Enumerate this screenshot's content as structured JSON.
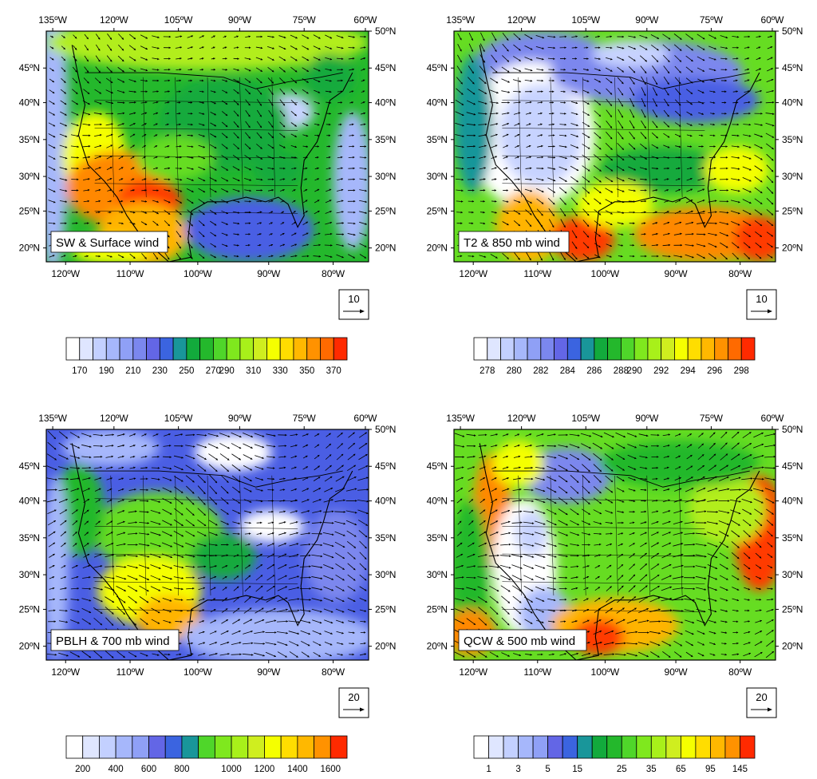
{
  "figure": {
    "panels": [
      {
        "label": "SW & Surface wind",
        "top_lon_labels": [
          "135ºW",
          "120ºW",
          "105ºW",
          "90ºW",
          "75ºW",
          "60ºW"
        ],
        "bottom_lon_labels": [
          "120ºW",
          "110ºW",
          "100ºW",
          "90ºW",
          "80ºW"
        ],
        "lat_labels": [
          "20ºN",
          "25ºN",
          "30ºN",
          "35ºN",
          "40ºN",
          "45ºN",
          "50ºN"
        ],
        "ref_vector": "10",
        "colorbar": {
          "colors": [
            "#ffffff",
            "#dfe6ff",
            "#c3d0ff",
            "#a6b7fb",
            "#8fa0f6",
            "#7b87ee",
            "#6366e6",
            "#3b64e0",
            "#19969a",
            "#12aa3c",
            "#24b82c",
            "#4fd62a",
            "#7fe81e",
            "#a8f01a",
            "#cfee1f",
            "#f5ff00",
            "#ffdd00",
            "#ffb800",
            "#ff9200",
            "#ff6a00",
            "#ff2a00"
          ],
          "labels": [
            "170",
            "190",
            "210",
            "230",
            "250",
            "270",
            "290",
            "310",
            "330",
            "350",
            "370"
          ]
        }
      },
      {
        "label": "T2 & 850 mb wind",
        "top_lon_labels": [
          "135ºW",
          "120ºW",
          "105ºW",
          "90ºW",
          "75ºW",
          "60ºW"
        ],
        "bottom_lon_labels": [
          "120ºW",
          "110ºW",
          "100ºW",
          "90ºW",
          "80ºW"
        ],
        "lat_labels": [
          "20ºN",
          "25ºN",
          "30ºN",
          "35ºN",
          "40ºN",
          "45ºN",
          "50ºN"
        ],
        "ref_vector": "10",
        "colorbar": {
          "colors": [
            "#ffffff",
            "#dfe6ff",
            "#c3d0ff",
            "#a6b7fb",
            "#8fa0f6",
            "#7b87ee",
            "#6366e6",
            "#3b64e0",
            "#19969a",
            "#12aa3c",
            "#24b82c",
            "#4fd62a",
            "#7fe81e",
            "#a8f01a",
            "#cfee1f",
            "#f5ff00",
            "#ffdd00",
            "#ffb800",
            "#ff9200",
            "#ff6a00",
            "#ff2a00"
          ],
          "labels": [
            "278",
            "280",
            "282",
            "284",
            "286",
            "288",
            "290",
            "292",
            "294",
            "296",
            "298"
          ]
        }
      },
      {
        "label": "PBLH & 700 mb wind",
        "top_lon_labels": [
          "135ºW",
          "120ºW",
          "105ºW",
          "90ºW",
          "75ºW",
          "60ºW"
        ],
        "bottom_lon_labels": [
          "120ºW",
          "110ºW",
          "100ºW",
          "90ºW",
          "80ºW"
        ],
        "lat_labels": [
          "20ºN",
          "25ºN",
          "30ºN",
          "35ºN",
          "40ºN",
          "45ºN",
          "50ºN"
        ],
        "ref_vector": "20",
        "colorbar": {
          "colors": [
            "#ffffff",
            "#dfe6ff",
            "#c3d0ff",
            "#a6b7fb",
            "#8fa0f6",
            "#6366e6",
            "#3b64e0",
            "#19969a",
            "#4fd62a",
            "#7fe81e",
            "#a8f01a",
            "#cfee1f",
            "#f5ff00",
            "#ffdd00",
            "#ffb800",
            "#ff9200",
            "#ff2a00"
          ],
          "labels": [
            "200",
            "400",
            "600",
            "800",
            "1000",
            "1200",
            "1400",
            "1600"
          ]
        }
      },
      {
        "label": "QCW & 500 mb wind",
        "top_lon_labels": [
          "135ºW",
          "120ºW",
          "105ºW",
          "90ºW",
          "75ºW",
          "60ºW"
        ],
        "bottom_lon_labels": [
          "120ºW",
          "110ºW",
          "100ºW",
          "90ºW",
          "80ºW"
        ],
        "lat_labels": [
          "20ºN",
          "25ºN",
          "30ºN",
          "35ºN",
          "40ºN",
          "45ºN",
          "50ºN"
        ],
        "ref_vector": "20",
        "colorbar": {
          "colors": [
            "#ffffff",
            "#dfe6ff",
            "#c3d0ff",
            "#a6b7fb",
            "#8fa0f6",
            "#6366e6",
            "#3b64e0",
            "#19969a",
            "#12aa3c",
            "#24b82c",
            "#4fd62a",
            "#7fe81e",
            "#a8f01a",
            "#cfee1f",
            "#f5ff00",
            "#ffdd00",
            "#ffb800",
            "#ff9200",
            "#ff2a00"
          ],
          "labels": [
            "1",
            "3",
            "5",
            "15",
            "25",
            "35",
            "65",
            "95",
            "145"
          ]
        }
      }
    ]
  }
}
